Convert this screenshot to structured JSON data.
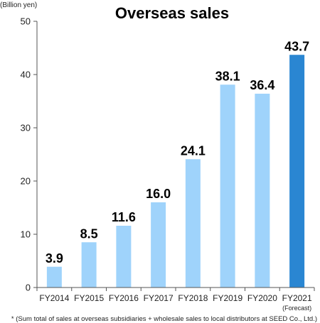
{
  "chart_data": {
    "type": "bar",
    "title": "Overseas sales",
    "unit_label": "(Billion yen)",
    "categories": [
      "FY2014",
      "FY2015",
      "FY2016",
      "FY2017",
      "FY2018",
      "FY2019",
      "FY2020",
      "FY2021"
    ],
    "values": [
      3.9,
      8.5,
      11.6,
      16.0,
      24.1,
      38.1,
      36.4,
      43.7
    ],
    "value_labels": [
      "3.9",
      "8.5",
      "11.6",
      "16.0",
      "24.1",
      "38.1",
      "36.4",
      "43.7"
    ],
    "yticks": [
      "0",
      "10",
      "20",
      "30",
      "40",
      "50"
    ],
    "ylim": [
      0,
      50
    ],
    "category_notes": [
      "",
      "",
      "",
      "",
      "",
      "",
      "",
      "(Forecast)"
    ],
    "footnote": "* (Sum total of sales at overseas subsidiaries + wholesale sales to local distributors at SEED Co., Ltd.)",
    "grid": false,
    "colors": {
      "actual": "#9fd3fb",
      "forecast": "#2a86d2",
      "axis": "#555555"
    }
  }
}
